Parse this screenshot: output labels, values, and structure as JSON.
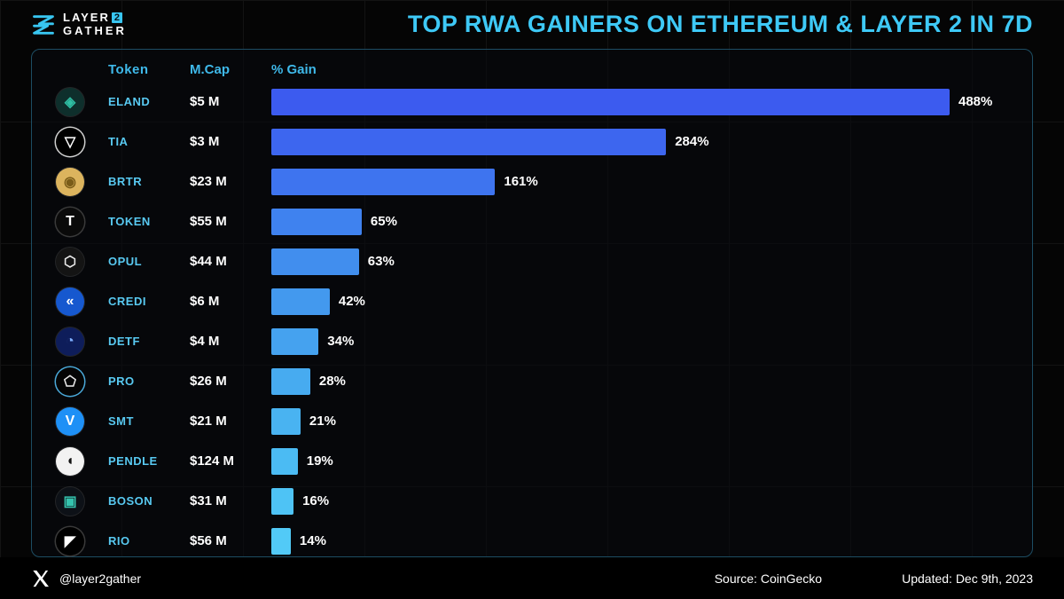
{
  "header": {
    "brand_line1": "LAYER",
    "brand_badge": "2",
    "brand_line2": "GATHER",
    "title": "TOP RWA GAINERS ON ETHEREUM & LAYER 2 IN 7D"
  },
  "columns": {
    "token": "Token",
    "mcap": "M.Cap",
    "gain": "% Gain"
  },
  "chart_data": {
    "type": "bar",
    "orientation": "horizontal",
    "title": "TOP RWA GAINERS ON ETHEREUM & LAYER 2 IN 7D",
    "categories": [
      "ELAND",
      "TIA",
      "BRTR",
      "TOKEN",
      "OPUL",
      "CREDI",
      "DETF",
      "PRO",
      "SMT",
      "PENDLE",
      "BOSON",
      "RIO"
    ],
    "series": [
      {
        "name": "7D % Gain",
        "values": [
          488,
          284,
          161,
          65,
          63,
          42,
          34,
          28,
          21,
          19,
          16,
          14
        ]
      },
      {
        "name": "Market Cap ($M)",
        "values": [
          5,
          3,
          23,
          55,
          44,
          6,
          4,
          26,
          21,
          124,
          31,
          56
        ]
      }
    ],
    "value_suffix": "%",
    "xlim": [
      0,
      500
    ],
    "grid": false,
    "legend": false,
    "bar_color_range": [
      "#3C5BEF",
      "#52CAF7"
    ]
  },
  "rows": [
    {
      "token": "ELAND",
      "mcap": "$5 M",
      "gain": "488%",
      "value": 488,
      "bar_color": "#3C5BEF",
      "icon_glyph": "◈",
      "icon_bg": "#0e2f2c",
      "icon_color": "#2fbfa4"
    },
    {
      "token": "TIA",
      "mcap": "$3 M",
      "gain": "284%",
      "value": 284,
      "bar_color": "#3D66EF",
      "icon_glyph": "▽",
      "icon_bg": "#000000",
      "icon_color": "#ffffff",
      "icon_border": "#cfcfcf"
    },
    {
      "token": "BRTR",
      "mcap": "$23 M",
      "gain": "161%",
      "value": 161,
      "bar_color": "#3E74EF",
      "icon_glyph": "◉",
      "icon_bg": "#dcb45e",
      "icon_color": "#7a5c18"
    },
    {
      "token": "TOKEN",
      "mcap": "$55 M",
      "gain": "65%",
      "value": 65,
      "bar_color": "#3F82EF",
      "icon_glyph": "T",
      "icon_bg": "#0a0a0a",
      "icon_color": "#ffffff",
      "icon_border": "#3a3a3a"
    },
    {
      "token": "OPUL",
      "mcap": "$44 M",
      "gain": "63%",
      "value": 63,
      "bar_color": "#418EEE",
      "icon_glyph": "⬡",
      "icon_bg": "#141414",
      "icon_color": "#ececec"
    },
    {
      "token": "CREDI",
      "mcap": "$6 M",
      "gain": "42%",
      "value": 42,
      "bar_color": "#4399EE",
      "icon_glyph": "«",
      "icon_bg": "#1658cf",
      "icon_color": "#ffffff"
    },
    {
      "token": "DETF",
      "mcap": "$4 M",
      "gain": "34%",
      "value": 34,
      "bar_color": "#45A2EF",
      "icon_glyph": "◔",
      "icon_bg": "#0e1d5a",
      "icon_color": "#7fb0ff"
    },
    {
      "token": "PRO",
      "mcap": "$26 M",
      "gain": "28%",
      "value": 28,
      "bar_color": "#47ABF0",
      "icon_glyph": "⬠",
      "icon_bg": "#050505",
      "icon_color": "#e8e8e8",
      "icon_border": "#4aa8d8"
    },
    {
      "token": "SMT",
      "mcap": "$21 M",
      "gain": "21%",
      "value": 21,
      "bar_color": "#49B3F1",
      "icon_glyph": "V",
      "icon_bg": "#1e90f6",
      "icon_color": "#ffffff"
    },
    {
      "token": "PENDLE",
      "mcap": "$124 M",
      "gain": "19%",
      "value": 19,
      "bar_color": "#4BBBF3",
      "icon_glyph": "◖",
      "icon_bg": "#f2f2f2",
      "icon_color": "#111111"
    },
    {
      "token": "BOSON",
      "mcap": "$31 M",
      "gain": "16%",
      "value": 16,
      "bar_color": "#4EC3F5",
      "icon_glyph": "▣",
      "icon_bg": "#0d1117",
      "icon_color": "#35c3ae"
    },
    {
      "token": "RIO",
      "mcap": "$56 M",
      "gain": "14%",
      "value": 14,
      "bar_color": "#52CAF7",
      "icon_glyph": "◤",
      "icon_bg": "#000000",
      "icon_color": "#ffffff",
      "icon_border": "#3a3a3a"
    }
  ],
  "footer": {
    "handle": "@layer2gather",
    "source": "Source: CoinGecko",
    "updated": "Updated: Dec 9th, 2023"
  }
}
